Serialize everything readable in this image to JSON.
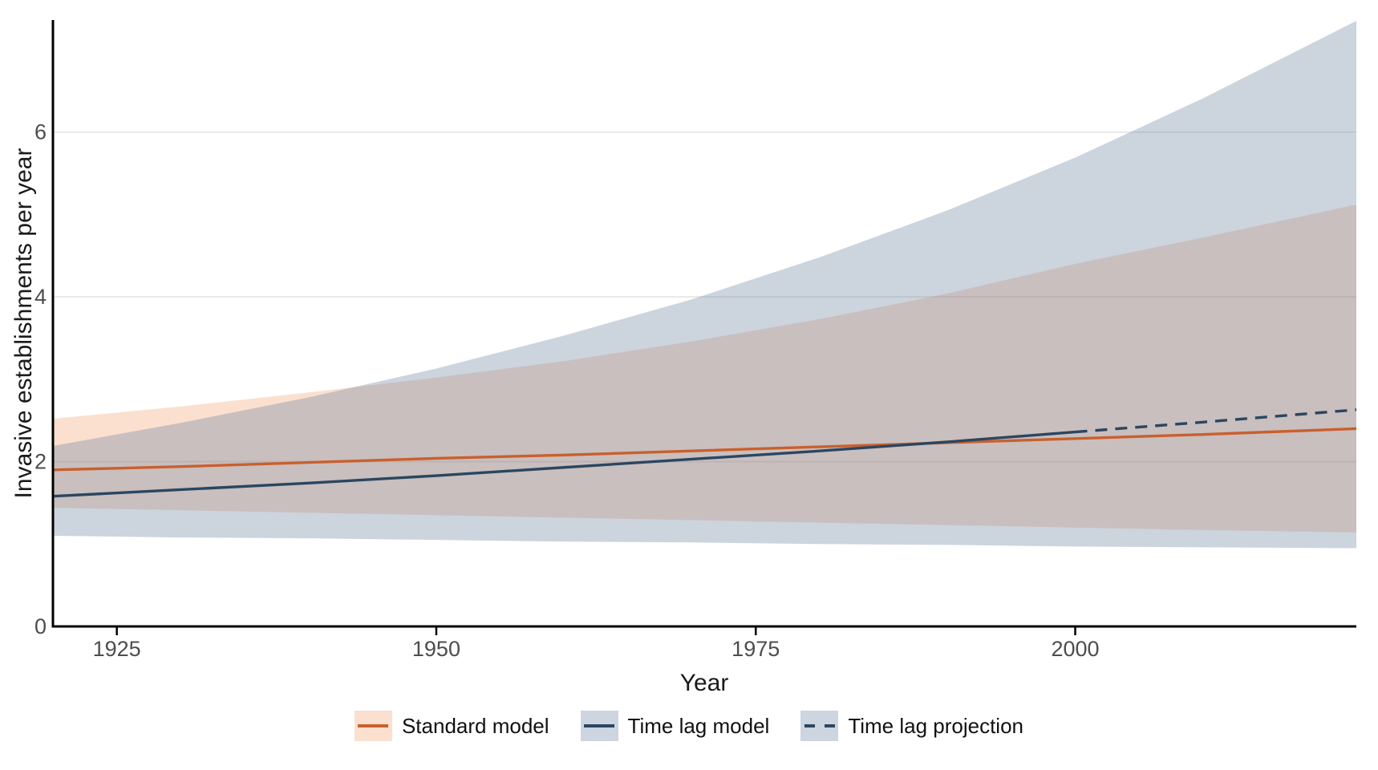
{
  "chart_data": {
    "type": "line",
    "title": "",
    "xlabel": "Year",
    "ylabel": "Invasive establishments per year",
    "xlim": [
      1920,
      2022
    ],
    "ylim": [
      0,
      7.36
    ],
    "x_ticks": [
      1925,
      1950,
      1975,
      2000
    ],
    "y_ticks": [
      0,
      2,
      4,
      6
    ],
    "grid": "horizontal-major",
    "legend_position": "bottom-center",
    "colors": {
      "axis": "#000000",
      "tick_label": "#4d4d4d",
      "grid": "#e8e8e8",
      "standard_line": "#c9602c",
      "timelag_line": "#2b4660",
      "standard_ribbon": "#fbdfcf",
      "timelag_ribbon": "#ccd5e0"
    },
    "series": [
      {
        "name": "Standard model",
        "style": "solid",
        "color": "#c9602c",
        "width": 3.4,
        "swatch_fill": "#fbdfcf",
        "x": [
          1920,
          1930,
          1940,
          1950,
          1960,
          1970,
          1980,
          1990,
          2000,
          2010,
          2022
        ],
        "y": [
          1.9,
          1.94,
          1.99,
          2.04,
          2.08,
          2.13,
          2.18,
          2.23,
          2.28,
          2.33,
          2.4
        ]
      },
      {
        "name": "Time lag model",
        "style": "solid",
        "color": "#2b4660",
        "width": 3.4,
        "swatch_fill": "#ccd5e0",
        "x": [
          1920,
          1930,
          1940,
          1950,
          1960,
          1970,
          1980,
          1990,
          2000
        ],
        "y": [
          1.58,
          1.66,
          1.74,
          1.83,
          1.93,
          2.03,
          2.13,
          2.24,
          2.36
        ]
      },
      {
        "name": "Time lag projection",
        "style": "dashed",
        "color": "#2b4660",
        "width": 3.4,
        "swatch_fill": "#ccd5e0",
        "x": [
          2000,
          2010,
          2022
        ],
        "y": [
          2.36,
          2.48,
          2.63
        ]
      }
    ],
    "bands": [
      {
        "name": "Standard model confidence band",
        "fill": "#ee6e24",
        "alpha": 0.22,
        "x": [
          1920,
          1930,
          1940,
          1950,
          1960,
          1970,
          1980,
          1990,
          2000,
          2010,
          2022
        ],
        "upper": [
          2.52,
          2.67,
          2.84,
          3.02,
          3.22,
          3.46,
          3.73,
          4.04,
          4.4,
          4.72,
          5.12
        ],
        "lower": [
          1.44,
          1.41,
          1.38,
          1.35,
          1.32,
          1.29,
          1.26,
          1.23,
          1.2,
          1.17,
          1.14
        ]
      },
      {
        "name": "Time lag model confidence band",
        "fill": "#6d84a1",
        "alpha": 0.35,
        "x": [
          1920,
          1930,
          1940,
          1950,
          1960,
          1970,
          1980,
          1990,
          2000,
          2010,
          2022
        ],
        "upper": [
          2.19,
          2.47,
          2.78,
          3.13,
          3.53,
          3.97,
          4.48,
          5.05,
          5.69,
          6.41,
          7.35
        ],
        "lower": [
          1.1,
          1.08,
          1.07,
          1.05,
          1.03,
          1.02,
          1.0,
          0.99,
          0.97,
          0.96,
          0.95
        ]
      }
    ]
  }
}
